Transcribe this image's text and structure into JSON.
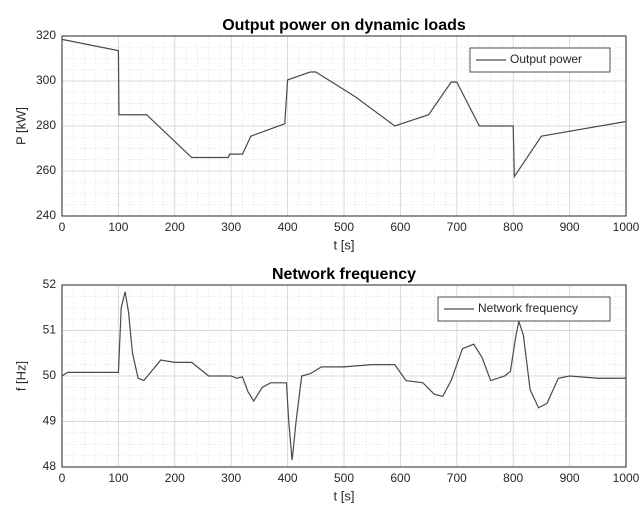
{
  "chart_data": [
    {
      "type": "line",
      "title": "Output power on dynamic loads",
      "xlabel": "t [s]",
      "ylabel": "P [kW]",
      "x": [
        0,
        100,
        101,
        150,
        230,
        295,
        297,
        320,
        335,
        395,
        400,
        440,
        450,
        520,
        590,
        650,
        690,
        700,
        740,
        800,
        802,
        850,
        1000
      ],
      "series": [
        {
          "name": "Output power",
          "color": "#4a4a4a",
          "values": [
            318.5,
            313.5,
            285,
            285,
            266,
            266,
            267.5,
            267.5,
            275.5,
            281,
            300.5,
            304,
            304,
            293,
            280,
            285,
            299.5,
            299.5,
            280,
            280,
            257.5,
            275.5,
            282
          ]
        }
      ],
      "xlim": [
        0,
        1000
      ],
      "ylim": [
        240,
        320
      ],
      "xticks": [
        0,
        100,
        200,
        300,
        400,
        500,
        600,
        700,
        800,
        900,
        1000
      ],
      "yticks": [
        240,
        260,
        280,
        300,
        320
      ],
      "grid": true,
      "minor_grid": true,
      "legend": "upper right"
    },
    {
      "type": "line",
      "title": "Network frequency",
      "xlabel": "t [s]",
      "ylabel": "f [Hz]",
      "x": [
        0,
        10,
        100,
        105,
        112,
        118,
        125,
        135,
        145,
        155,
        175,
        200,
        230,
        260,
        300,
        310,
        320,
        330,
        340,
        355,
        370,
        398,
        402,
        408,
        415,
        425,
        440,
        460,
        500,
        550,
        590,
        610,
        640,
        660,
        675,
        690,
        710,
        730,
        745,
        760,
        785,
        795,
        805,
        810,
        818,
        830,
        845,
        860,
        880,
        900,
        950,
        1000
      ],
      "series": [
        {
          "name": "Network frequency",
          "color": "#4a4a4a",
          "values": [
            50.0,
            50.08,
            50.08,
            51.5,
            51.85,
            51.4,
            50.5,
            49.95,
            49.9,
            50.05,
            50.35,
            50.3,
            50.3,
            50.0,
            50.0,
            49.95,
            49.98,
            49.65,
            49.45,
            49.75,
            49.85,
            49.85,
            49.0,
            48.15,
            49.0,
            50.0,
            50.05,
            50.2,
            50.2,
            50.25,
            50.25,
            49.9,
            49.85,
            49.6,
            49.55,
            49.9,
            50.6,
            50.7,
            50.4,
            49.9,
            50.0,
            50.1,
            50.9,
            51.2,
            50.9,
            49.7,
            49.3,
            49.4,
            49.95,
            50.0,
            49.95,
            49.95
          ]
        }
      ],
      "xlim": [
        0,
        1000
      ],
      "ylim": [
        48,
        52
      ],
      "xticks": [
        0,
        100,
        200,
        300,
        400,
        500,
        600,
        700,
        800,
        900,
        1000
      ],
      "yticks": [
        48,
        49,
        50,
        51,
        52
      ],
      "grid": true,
      "minor_grid": true,
      "legend": "upper right"
    }
  ]
}
